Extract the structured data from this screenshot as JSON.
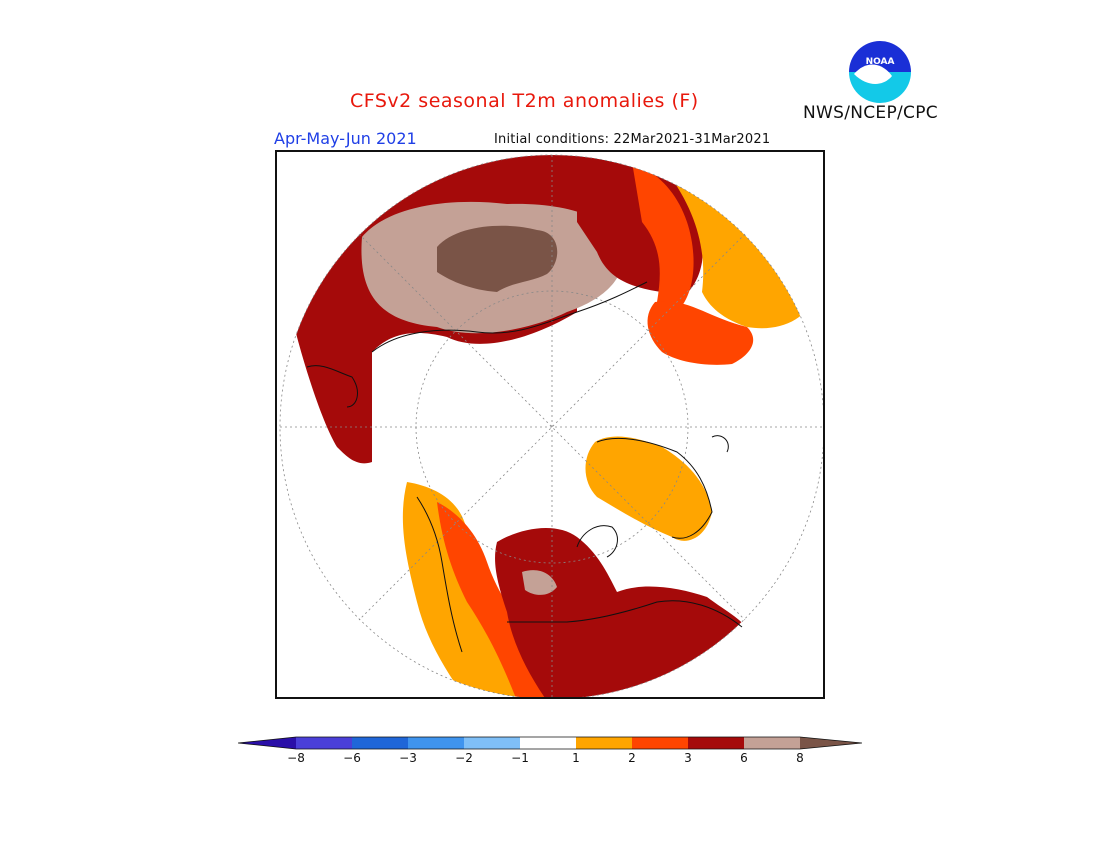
{
  "header": {
    "title": "CFSv2 seasonal T2m anomalies (F)",
    "season": "Apr-May-Jun 2021",
    "initial_conditions": "Initial conditions: 22Mar2021-31Mar2021",
    "agency": "NWS/NCEP/CPC",
    "logo_text": "NOAA"
  },
  "colors": {
    "title": "#e8180c",
    "season": "#1f3fe6",
    "levels": [
      "#2a0fa8",
      "#4a3fd8",
      "#1f66d8",
      "#3f94ee",
      "#7fbff7",
      "#ffffff",
      "#ffa500",
      "#ff4500",
      "#a50a0a",
      "#c4a196",
      "#7a5447"
    ]
  },
  "legend": {
    "ticks": [
      "−8",
      "−6",
      "−3",
      "−2",
      "−1",
      "1",
      "2",
      "3",
      "6",
      "8"
    ]
  },
  "map": {
    "projection": "north polar stereographic",
    "icons": [
      "noaa-logo-icon"
    ]
  }
}
